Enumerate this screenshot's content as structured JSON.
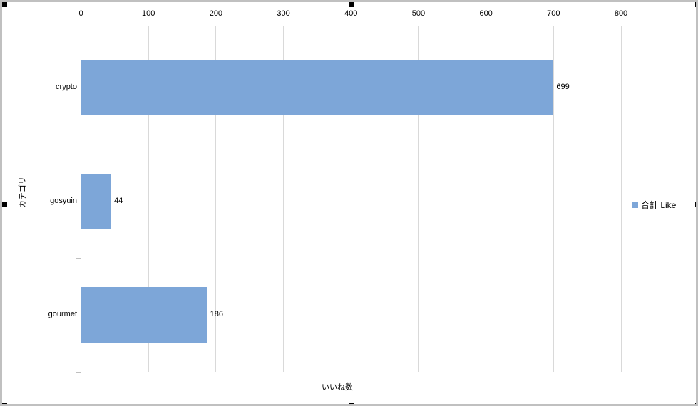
{
  "chart_data": {
    "type": "bar",
    "orientation": "horizontal",
    "title": "",
    "categories": [
      "crypto",
      "gosyuin",
      "gourmet"
    ],
    "series": [
      {
        "name": "合計 Like",
        "values": [
          699,
          44,
          186
        ]
      }
    ],
    "data_labels": [
      "699",
      "44",
      "186"
    ],
    "xlabel": "いいね数",
    "ylabel": "カテゴリ",
    "xlim": [
      0,
      800
    ],
    "xticks": [
      0,
      100,
      200,
      300,
      400,
      500,
      600,
      700,
      800
    ],
    "grid": true,
    "legend_position": "right",
    "colors": {
      "bar": "#7DA6D8",
      "axis_line": "#BFBFBF",
      "gridline": "#D9D9D9",
      "frame_border": "#C0C0C0",
      "selection_handle": "#000000",
      "text": "#000000"
    }
  }
}
